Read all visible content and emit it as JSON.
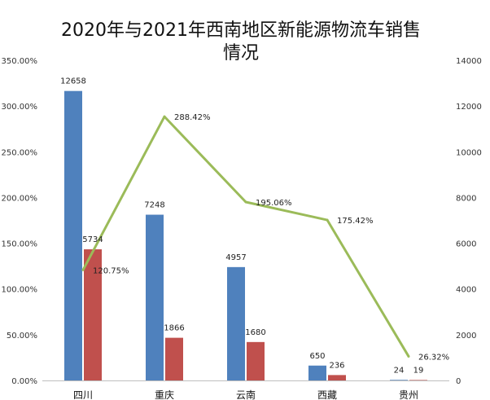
{
  "chart_data": {
    "type": "bar",
    "title": "2020年与2021年西南地区新能源物流车销售情况",
    "title_lines": [
      "2020年与2021年西南地区新能源物流车销售",
      "情况"
    ],
    "categories": [
      "四川",
      "重庆",
      "云南",
      "西藏",
      "贵州"
    ],
    "series": [
      {
        "type": "bar",
        "axis": "right",
        "color": "#4F81BD",
        "values": [
          12658,
          7248,
          4957,
          650,
          24
        ]
      },
      {
        "type": "bar",
        "axis": "right",
        "color": "#C0504D",
        "values": [
          5734,
          1866,
          1680,
          236,
          19
        ]
      },
      {
        "type": "line",
        "axis": "left",
        "color": "#9BBB59",
        "values": [
          120.75,
          288.42,
          195.06,
          175.42,
          26.32
        ],
        "labels": [
          "120.75%",
          "288.42%",
          "195.06%",
          "175.42%",
          "26.32%"
        ]
      }
    ],
    "y_left": {
      "min": 0,
      "max": 350,
      "ticks": [
        "0.00%",
        "50.00%",
        "100.00%",
        "150.00%",
        "200.00%",
        "250.00%",
        "300.00%",
        "350.00%"
      ]
    },
    "y_right": {
      "min": 0,
      "max": 14000,
      "ticks": [
        "0",
        "2000",
        "4000",
        "6000",
        "8000",
        "10000",
        "12000",
        "14000"
      ]
    },
    "grid": false,
    "legend": "none"
  }
}
